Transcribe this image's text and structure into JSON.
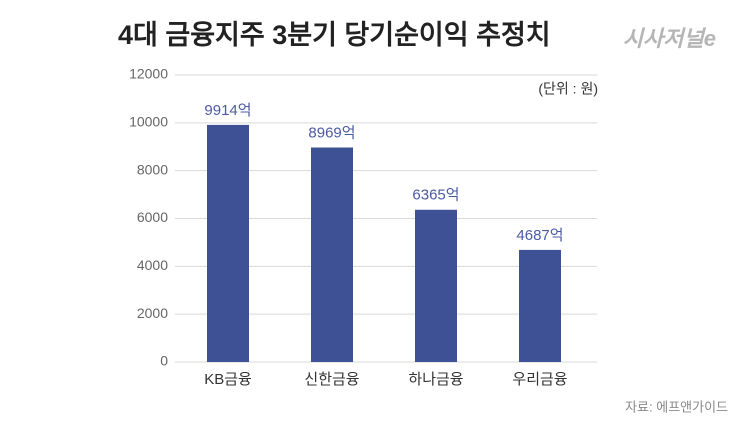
{
  "chart_data": {
    "type": "bar",
    "title": "4대 금융지주 3분기 당기순이익 추정치",
    "logo": "시사저널e",
    "unit_label": "(단위 : 원)",
    "source": "자료: 에프앤가이드",
    "categories": [
      "KB금융",
      "신한금융",
      "하나금융",
      "우리금융"
    ],
    "values": [
      9914,
      8969,
      6365,
      4687
    ],
    "value_labels": [
      "9914억",
      "8969억",
      "6365억",
      "4687억"
    ],
    "color": "#3f5195",
    "ylim": [
      0,
      12000
    ],
    "yticks": [
      0,
      2000,
      4000,
      6000,
      8000,
      10000,
      12000
    ],
    "grid": true
  }
}
